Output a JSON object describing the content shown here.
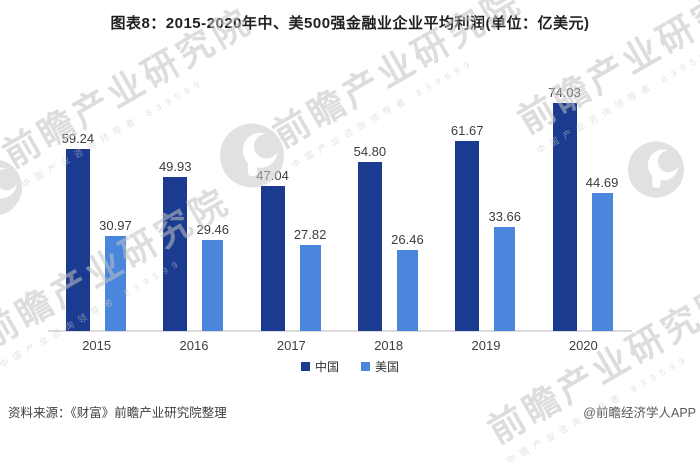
{
  "title": "图表8：2015-2020年中、美500强金融业企业平均利润(单位：亿美元)",
  "chart_data": {
    "type": "bar",
    "categories": [
      "2015",
      "2016",
      "2017",
      "2018",
      "2019",
      "2020"
    ],
    "series": [
      {
        "name": "中国",
        "key": "china",
        "color": "#1A3B8F",
        "values": [
          59.24,
          49.93,
          47.04,
          54.8,
          61.67,
          74.03
        ]
      },
      {
        "name": "美国",
        "key": "usa",
        "color": "#4A86DB",
        "values": [
          30.97,
          29.46,
          27.82,
          26.46,
          33.66,
          44.69
        ]
      }
    ],
    "ylim": [
      0,
      80
    ],
    "grid": false,
    "legend_position": "bottom",
    "value_labels": true,
    "value_label_decimals": 2,
    "axis_color": "#DCDCDC",
    "tick_label_color": "#404040",
    "value_label_color": "#3D3D3D"
  },
  "footer": {
    "source": "资料来源：《财富》前瞻产业研究院整理",
    "credit": "@前瞻经济学人APP"
  },
  "watermark": {
    "main": "前瞻产业研究院",
    "sub": "中国产业咨询领导者",
    "code": "839599"
  }
}
